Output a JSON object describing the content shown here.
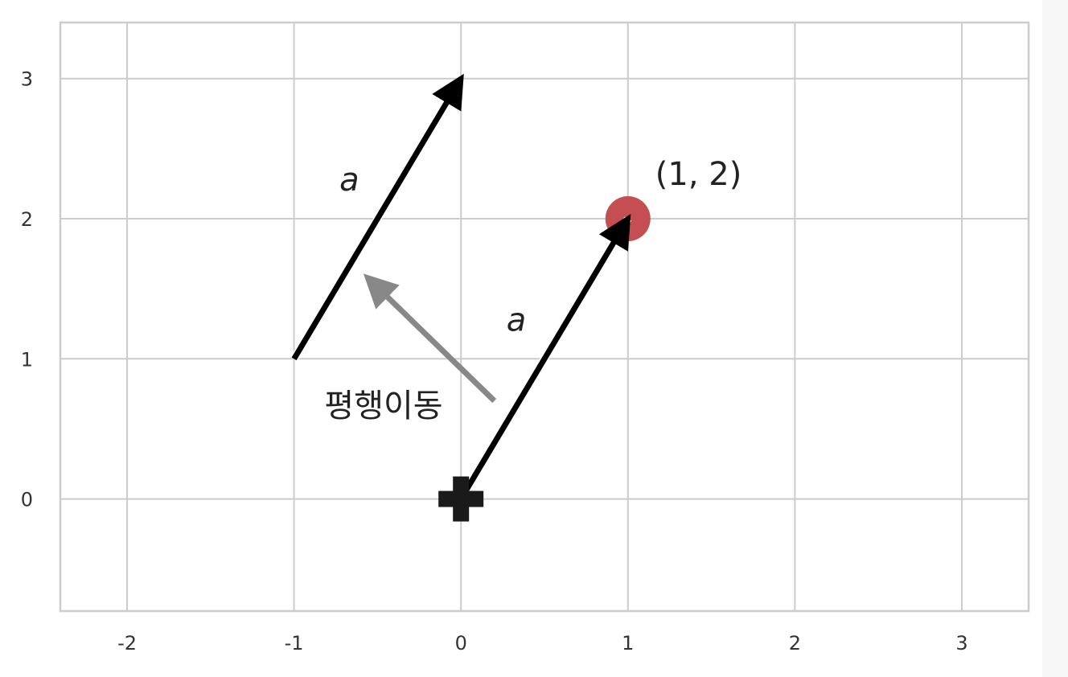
{
  "chart_data": {
    "type": "scatter",
    "title": "",
    "xlabel": "",
    "ylabel": "",
    "xlim": [
      -2.4,
      3.4
    ],
    "ylim": [
      -0.8,
      3.4
    ],
    "x_ticks": [
      "-2",
      "-1",
      "0",
      "1",
      "2",
      "3"
    ],
    "y_ticks": [
      "0",
      "1",
      "2",
      "3"
    ],
    "grid": true,
    "points": [
      {
        "x": 0,
        "y": 0,
        "marker": "plus",
        "color": "#1a1a1a"
      },
      {
        "x": 1,
        "y": 2,
        "marker": "circle",
        "color": "#c44e52",
        "label": "(1, 2)"
      }
    ],
    "vectors": [
      {
        "from": [
          0,
          0
        ],
        "to": [
          1,
          2
        ],
        "label": "a",
        "color": "#000000"
      },
      {
        "from": [
          -1,
          1
        ],
        "to": [
          0,
          3
        ],
        "label": "a",
        "color": "#000000"
      }
    ],
    "annotation_arrow": {
      "from": [
        0.2,
        0.7
      ],
      "to": [
        -0.56,
        1.58
      ],
      "color": "#888888"
    },
    "annotation_text": "평행이동"
  },
  "colors": {
    "grid": "#cccccc",
    "frame": "#cccccc",
    "point_red": "#c44e52",
    "vector": "#000000",
    "shift_arrow": "#888888"
  }
}
